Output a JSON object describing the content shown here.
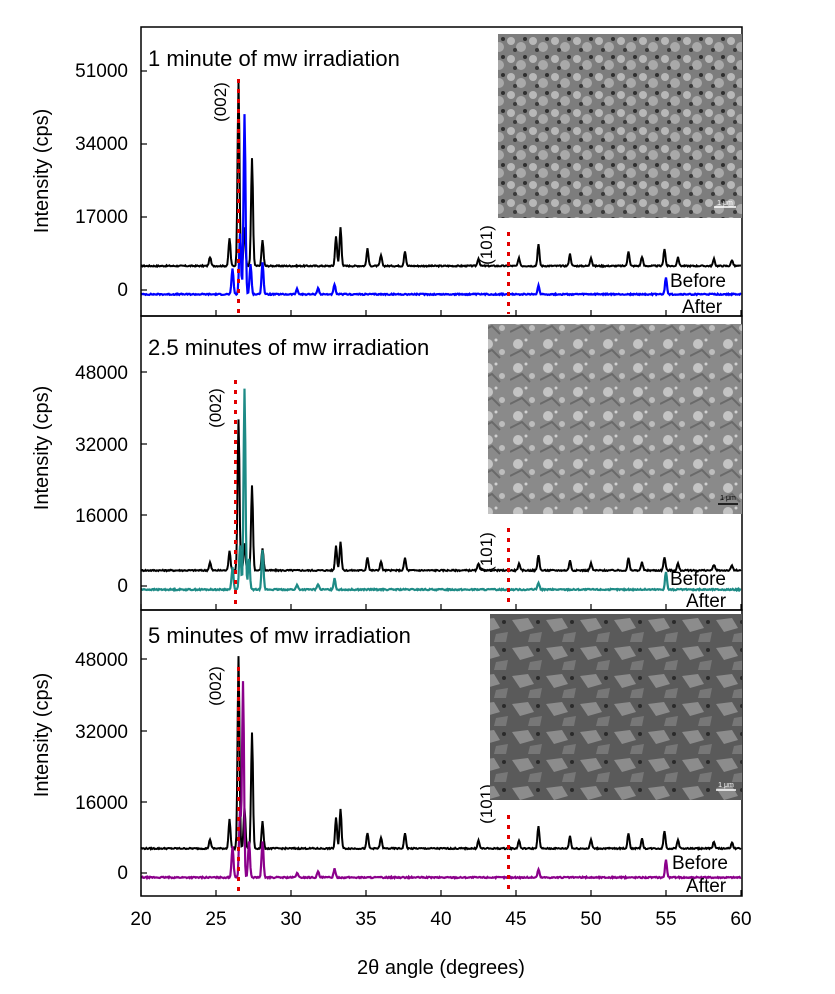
{
  "figure": {
    "xlabel": "2θ angle (degrees)",
    "x_ticks": [
      "20",
      "25",
      "30",
      "35",
      "40",
      "45",
      "50",
      "55",
      "60"
    ],
    "peak_labels": [
      "(002)",
      "(101)"
    ],
    "legend": [
      "Before",
      "After"
    ]
  },
  "chart_data": [
    {
      "type": "line",
      "title": "1 minute of mw irradiation",
      "ylabel": "Intensity (cps)",
      "y_ticks": [
        "0",
        "17000",
        "34000",
        "51000"
      ],
      "xlim": [
        20,
        60
      ],
      "ylim": [
        -6000,
        62000
      ],
      "legend_placement": "bottom-right",
      "peak_markers": [
        {
          "label": "(002)",
          "x": 26.5
        },
        {
          "label": "(101)",
          "x": 44.5
        }
      ],
      "inset": {
        "type": "SEM micrograph",
        "scale_bar": "1 μm"
      },
      "series": [
        {
          "name": "Before",
          "color": "#000000",
          "baseline": 5600,
          "peaks": [
            [
              24.6,
              2100
            ],
            [
              25.9,
              6500
            ],
            [
              26.5,
              43000
            ],
            [
              26.9,
              9000
            ],
            [
              27.4,
              25000
            ],
            [
              28.1,
              6000
            ],
            [
              33.0,
              7000
            ],
            [
              33.3,
              9000
            ],
            [
              35.1,
              4000
            ],
            [
              36.0,
              2500
            ],
            [
              37.6,
              3500
            ],
            [
              42.5,
              1800
            ],
            [
              45.2,
              1800
            ],
            [
              46.5,
              5000
            ],
            [
              48.6,
              2800
            ],
            [
              50.0,
              2000
            ],
            [
              52.5,
              3500
            ],
            [
              53.4,
              2200
            ],
            [
              54.9,
              4000
            ],
            [
              55.8,
              2000
            ],
            [
              58.2,
              1600
            ],
            [
              59.4,
              1400
            ]
          ]
        },
        {
          "name": "After",
          "color": "#0000ff",
          "baseline": -1000,
          "peaks": [
            [
              26.1,
              6000
            ],
            [
              26.6,
              14000
            ],
            [
              26.9,
              42000
            ],
            [
              27.3,
              7000
            ],
            [
              28.1,
              7500
            ],
            [
              30.4,
              1200
            ],
            [
              31.8,
              1500
            ],
            [
              32.9,
              2200
            ],
            [
              46.5,
              2000
            ],
            [
              55.0,
              4000
            ]
          ]
        }
      ]
    },
    {
      "type": "line",
      "title": "2.5 minutes of mw irradiation",
      "ylabel": "Intensity (cps)",
      "y_ticks": [
        "0",
        "16000",
        "32000",
        "48000"
      ],
      "xlim": [
        20,
        60
      ],
      "ylim": [
        -4000,
        62000
      ],
      "legend_placement": "bottom-right",
      "peak_markers": [
        {
          "label": "(002)",
          "x": 26.3
        },
        {
          "label": "(101)",
          "x": 44.5
        }
      ],
      "inset": {
        "type": "SEM micrograph",
        "scale_bar": "1 μm"
      },
      "series": [
        {
          "name": "Before",
          "color": "#000000",
          "baseline": 3500,
          "peaks": [
            [
              24.6,
              1800
            ],
            [
              25.9,
              4500
            ],
            [
              26.5,
              34000
            ],
            [
              26.9,
              6000
            ],
            [
              27.4,
              19000
            ],
            [
              28.1,
              5000
            ],
            [
              33.0,
              5500
            ],
            [
              33.3,
              6500
            ],
            [
              35.1,
              3000
            ],
            [
              36.0,
              2000
            ],
            [
              37.6,
              2800
            ],
            [
              42.5,
              1500
            ],
            [
              45.2,
              1500
            ],
            [
              46.5,
              3500
            ],
            [
              48.6,
              2200
            ],
            [
              50.0,
              1600
            ],
            [
              52.5,
              2800
            ],
            [
              53.4,
              1800
            ],
            [
              54.9,
              3000
            ],
            [
              55.8,
              1600
            ],
            [
              58.2,
              1300
            ],
            [
              59.4,
              1100
            ]
          ]
        },
        {
          "name": "After",
          "color": "#1e8b86",
          "baseline": -800,
          "peaks": [
            [
              26.1,
              5000
            ],
            [
              26.6,
              10000
            ],
            [
              26.9,
              45000
            ],
            [
              27.2,
              7000
            ],
            [
              28.1,
              9000
            ],
            [
              30.4,
              1000
            ],
            [
              31.8,
              1300
            ],
            [
              32.9,
              2500
            ],
            [
              46.5,
              1600
            ],
            [
              55.0,
              4000
            ]
          ]
        }
      ]
    },
    {
      "type": "line",
      "title": "5 minutes of mw irradiation",
      "ylabel": "Intensity (cps)",
      "y_ticks": [
        "0",
        "16000",
        "32000",
        "48000"
      ],
      "xlim": [
        20,
        60
      ],
      "ylim": [
        -4000,
        62000
      ],
      "legend_placement": "bottom-right",
      "peak_markers": [
        {
          "label": "(002)",
          "x": 26.5
        },
        {
          "label": "(101)",
          "x": 44.5
        }
      ],
      "inset": {
        "type": "SEM micrograph",
        "scale_bar": "1 μm"
      },
      "series": [
        {
          "name": "Before",
          "color": "#000000",
          "baseline": 5500,
          "peaks": [
            [
              24.6,
              2100
            ],
            [
              25.9,
              6500
            ],
            [
              26.5,
              43000
            ],
            [
              26.9,
              9000
            ],
            [
              27.4,
              26000
            ],
            [
              28.1,
              6000
            ],
            [
              33.0,
              7000
            ],
            [
              33.3,
              9000
            ],
            [
              35.1,
              3500
            ],
            [
              36.0,
              2500
            ],
            [
              37.6,
              3500
            ],
            [
              42.5,
              1800
            ],
            [
              45.2,
              1800
            ],
            [
              46.5,
              5000
            ],
            [
              48.6,
              2800
            ],
            [
              50.0,
              2000
            ],
            [
              52.5,
              3500
            ],
            [
              53.4,
              2200
            ],
            [
              54.9,
              4000
            ],
            [
              55.8,
              2000
            ],
            [
              58.2,
              1600
            ],
            [
              59.4,
              1400
            ]
          ]
        },
        {
          "name": "After",
          "color": "#8b008b",
          "baseline": -1000,
          "peaks": [
            [
              26.1,
              7000
            ],
            [
              26.6,
              15000
            ],
            [
              26.8,
              44000
            ],
            [
              27.2,
              8000
            ],
            [
              28.1,
              8000
            ],
            [
              30.4,
              1000
            ],
            [
              31.8,
              1300
            ],
            [
              32.9,
              2000
            ],
            [
              46.5,
              1800
            ],
            [
              55.0,
              4000
            ]
          ]
        }
      ]
    }
  ]
}
